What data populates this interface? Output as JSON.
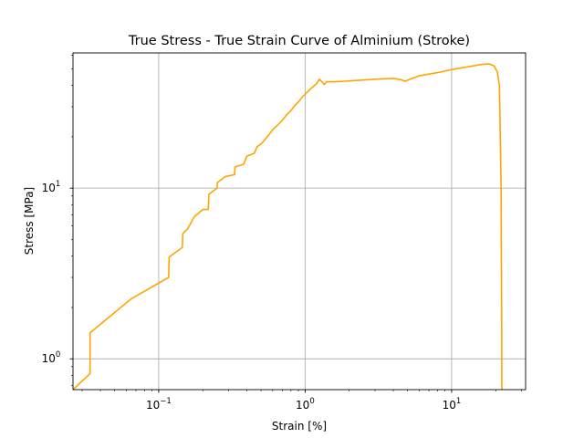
{
  "chart_data": {
    "type": "line",
    "title": "True Stress - True Strain Curve of Alminium (Stroke)",
    "xlabel": "Strain [%]",
    "ylabel": "Stress [MPa]",
    "xscale": "log",
    "yscale": "log",
    "xlim": [
      0.026,
      32
    ],
    "ylim": [
      0.66,
      62
    ],
    "grid": true,
    "colors": {
      "line": "#ffa500",
      "grid": "#b0b0b0",
      "axes": "#000000"
    },
    "x_ticks": [
      {
        "value": 0.1,
        "base": "10",
        "exp": "−1"
      },
      {
        "value": 1,
        "base": "10",
        "exp": "0"
      },
      {
        "value": 10,
        "base": "10",
        "exp": "1"
      }
    ],
    "y_ticks": [
      {
        "value": 1,
        "base": "10",
        "exp": "0"
      },
      {
        "value": 10,
        "base": "10",
        "exp": "1"
      }
    ],
    "series": [
      {
        "x": [
          0.026,
          0.034,
          0.034,
          0.065,
          0.117,
          0.118,
          0.145,
          0.146,
          0.158,
          0.175,
          0.2,
          0.218,
          0.22,
          0.25,
          0.252,
          0.285,
          0.33,
          0.332,
          0.38,
          0.4,
          0.45,
          0.47,
          0.5,
          0.52,
          0.56,
          0.6,
          0.65,
          0.7,
          0.75,
          0.8,
          0.85,
          0.9,
          0.95,
          1.0,
          1.1,
          1.2,
          1.25,
          1.3,
          1.35,
          1.4,
          1.6,
          2.0,
          3.0,
          4.0,
          4.5,
          4.8,
          5.2,
          6.0,
          8.0,
          10.0,
          13.0,
          16.0,
          18.0,
          19.5,
          20.5,
          21.2,
          21.8,
          22.0,
          22.0
        ],
        "y": [
          0.66,
          0.82,
          1.42,
          2.25,
          3.0,
          3.95,
          4.5,
          5.4,
          5.8,
          6.8,
          7.5,
          7.5,
          9.2,
          10.0,
          10.8,
          11.7,
          12.0,
          13.3,
          13.8,
          15.4,
          16.0,
          17.5,
          18.2,
          18.8,
          20.3,
          22.0,
          23.5,
          25.0,
          27.0,
          28.5,
          30.5,
          32.0,
          34.0,
          35.5,
          38.5,
          41.0,
          43.5,
          42.0,
          40.5,
          42.0,
          42.0,
          42.5,
          43.5,
          44.0,
          43.2,
          42.3,
          43.5,
          45.5,
          47.5,
          49.5,
          51.5,
          53.0,
          53.5,
          52.0,
          48.0,
          40.0,
          10.0,
          1.0,
          0.66
        ]
      }
    ]
  }
}
